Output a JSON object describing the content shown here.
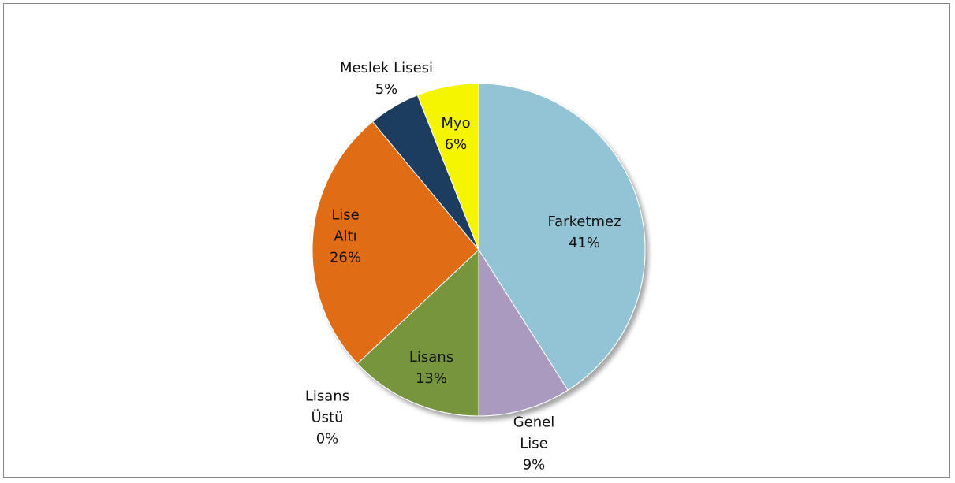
{
  "chart_data": {
    "type": "pie",
    "categories": [
      "Farketmez",
      "Genel Lise",
      "Lisans",
      "Lisans Üstü",
      "Lise Altı",
      "Meslek Lisesi",
      "Myo"
    ],
    "values": [
      41,
      9,
      13,
      0,
      26,
      5,
      6
    ],
    "value_labels": [
      "41%",
      "9%",
      "13%",
      "0%",
      "26%",
      "5%",
      "6%"
    ],
    "colors": [
      "#92c4d6",
      "#aa9ac0",
      "#77953e",
      "#4f81bd",
      "#e06c16",
      "#1f3d60",
      "#f5f500"
    ]
  }
}
